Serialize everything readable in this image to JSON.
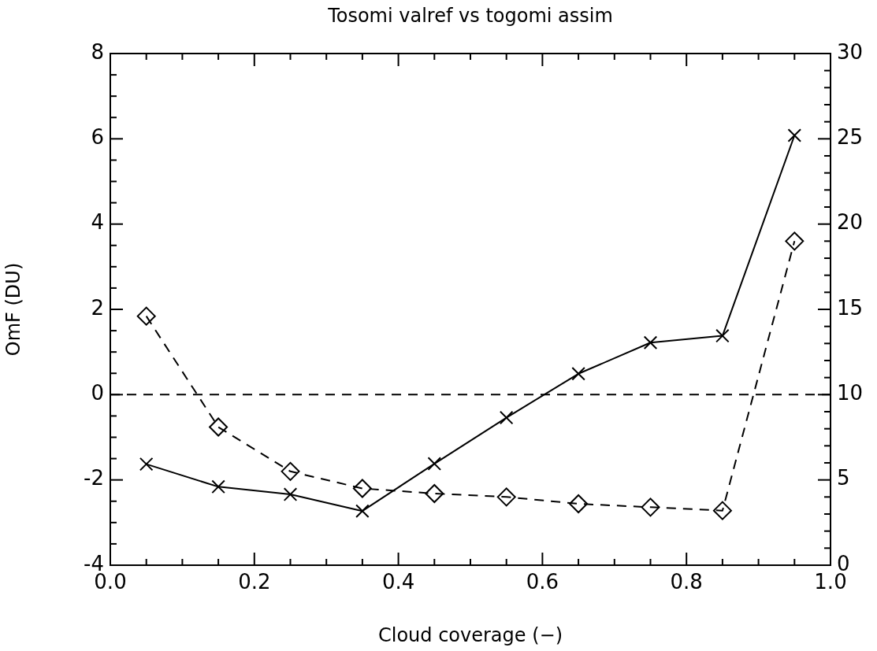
{
  "chart_data": {
    "type": "line",
    "title": "Tosomi valref vs togomi assim",
    "xlabel": "Cloud coverage (−)",
    "ylabel": "OmF (DU)",
    "x": [
      0.05,
      0.15,
      0.25,
      0.35,
      0.45,
      0.55,
      0.65,
      0.75,
      0.85,
      0.95
    ],
    "series": [
      {
        "color": "#000000",
        "marker": "cross",
        "line_style": "solid",
        "values": [
          -1.63,
          -2.16,
          -2.34,
          -2.73,
          -1.62,
          -0.54,
          0.49,
          1.22,
          1.38,
          6.08
        ]
      },
      {
        "color": "#000000",
        "marker": "diamond",
        "line_style": "dashed",
        "axis": "y2",
        "values": [
          14.6,
          8.1,
          5.5,
          4.5,
          4.2,
          4.0,
          3.6,
          3.4,
          3.2,
          19.0
        ]
      }
    ],
    "xlim": [
      0,
      1
    ],
    "xticks": [
      {
        "value": 0,
        "label": "0.0"
      },
      {
        "value": 0.05,
        "label": null
      },
      {
        "value": 0.1,
        "label": null
      },
      {
        "value": 0.15,
        "label": null
      },
      {
        "value": 0.2,
        "label": "0.2"
      },
      {
        "value": 0.25,
        "label": null
      },
      {
        "value": 0.3,
        "label": null
      },
      {
        "value": 0.35,
        "label": null
      },
      {
        "value": 0.4,
        "label": "0.4"
      },
      {
        "value": 0.45,
        "label": null
      },
      {
        "value": 0.5,
        "label": null
      },
      {
        "value": 0.55,
        "label": null
      },
      {
        "value": 0.6,
        "label": "0.6"
      },
      {
        "value": 0.65,
        "label": null
      },
      {
        "value": 0.7,
        "label": null
      },
      {
        "value": 0.75,
        "label": null
      },
      {
        "value": 0.8,
        "label": "0.8"
      },
      {
        "value": 0.85,
        "label": null
      },
      {
        "value": 0.9,
        "label": null
      },
      {
        "value": 0.95,
        "label": null
      },
      {
        "value": 1,
        "label": "1.0"
      }
    ],
    "ylim": [
      -4,
      8
    ],
    "yticks": [
      -4,
      {
        "value": -3.5,
        "label": null
      },
      {
        "value": -3,
        "label": null
      },
      {
        "value": -2.5,
        "label": null
      },
      -2,
      {
        "value": -1.5,
        "label": null
      },
      {
        "value": -1,
        "label": null
      },
      {
        "value": -0.5,
        "label": null
      },
      0,
      {
        "value": 0.5,
        "label": null
      },
      {
        "value": 1,
        "label": null
      },
      {
        "value": 1.5,
        "label": null
      },
      2,
      {
        "value": 2.5,
        "label": null
      },
      {
        "value": 3,
        "label": null
      },
      {
        "value": 3.5,
        "label": null
      },
      4,
      {
        "value": 4.5,
        "label": null
      },
      {
        "value": 5,
        "label": null
      },
      {
        "value": 5.5,
        "label": null
      },
      6,
      {
        "value": 6.5,
        "label": null
      },
      {
        "value": 7,
        "label": null
      },
      {
        "value": 7.5,
        "label": null
      },
      8
    ],
    "y2lim": [
      0,
      30
    ],
    "y2ticks": [
      0,
      {
        "value": 1,
        "label": null
      },
      {
        "value": 2,
        "label": null
      },
      {
        "value": 3,
        "label": null
      },
      {
        "value": 4,
        "label": null
      },
      5,
      {
        "value": 6,
        "label": null
      },
      {
        "value": 7,
        "label": null
      },
      {
        "value": 8,
        "label": null
      },
      {
        "value": 9,
        "label": null
      },
      10,
      {
        "value": 11,
        "label": null
      },
      {
        "value": 12,
        "label": null
      },
      {
        "value": 13,
        "label": null
      },
      {
        "value": 14,
        "label": null
      },
      15,
      {
        "value": 16,
        "label": null
      },
      {
        "value": 17,
        "label": null
      },
      {
        "value": 18,
        "label": null
      },
      {
        "value": 19,
        "label": null
      },
      20,
      {
        "value": 21,
        "label": null
      },
      {
        "value": 22,
        "label": null
      },
      {
        "value": 23,
        "label": null
      },
      {
        "value": 24,
        "label": null
      },
      25,
      {
        "value": 26,
        "label": null
      },
      {
        "value": 27,
        "label": null
      },
      {
        "value": 28,
        "label": null
      },
      {
        "value": 29,
        "label": null
      },
      30
    ],
    "ref_lines": [
      {
        "axis": "y",
        "value": 0,
        "color": "#000000",
        "line_style": "dashed"
      }
    ],
    "grid": false,
    "legend": false
  }
}
